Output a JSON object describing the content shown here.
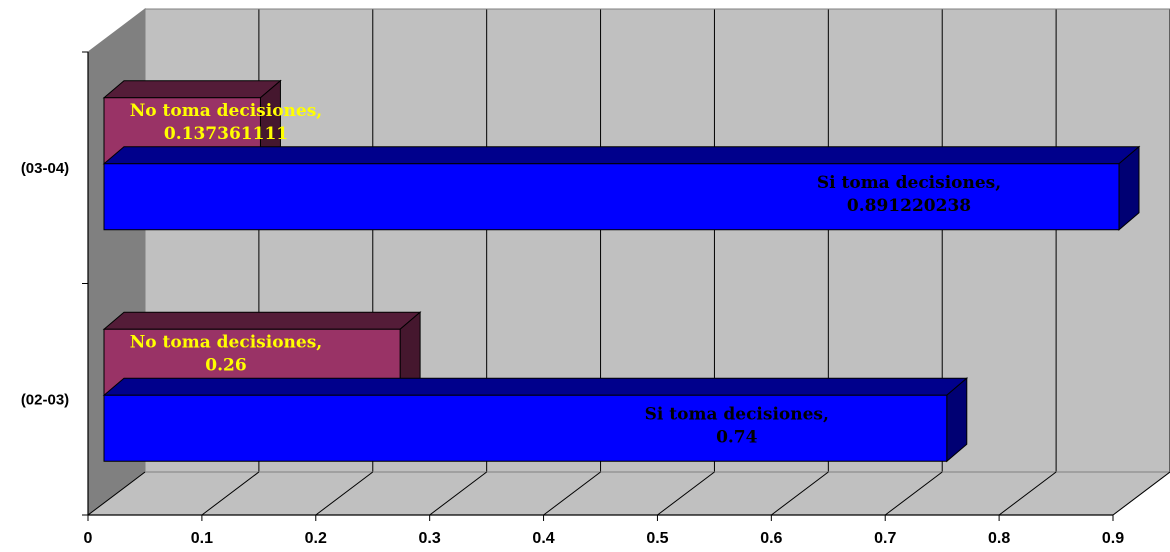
{
  "chart_data": {
    "type": "bar",
    "orientation": "horizontal",
    "three_d": true,
    "categories": [
      "(02-03)",
      "(03-04)"
    ],
    "series": [
      {
        "name": "Si toma decisiones",
        "values": [
          0.74,
          0.891220238
        ],
        "labels": [
          [
            "Si toma decisiones,",
            "0.74"
          ],
          [
            "Si toma decisiones,",
            "0.891220238"
          ]
        ],
        "color": "#0000FF",
        "label_color": "#000000"
      },
      {
        "name": "No toma decisiones",
        "values": [
          0.26,
          0.137361111
        ],
        "labels": [
          [
            "No toma decisiones,",
            "0.26"
          ],
          [
            "No toma decisiones,",
            "0.137361111"
          ]
        ],
        "color": "#993366",
        "label_color": "#FFFF00"
      }
    ],
    "xlim": [
      0,
      0.9
    ],
    "xticks": [
      "0",
      "0.1",
      "0.2",
      "0.3",
      "0.4",
      "0.5",
      "0.6",
      "0.7",
      "0.8",
      "0.9"
    ],
    "grid": true,
    "legend": "none",
    "wall_color": "#C0C0C0"
  }
}
